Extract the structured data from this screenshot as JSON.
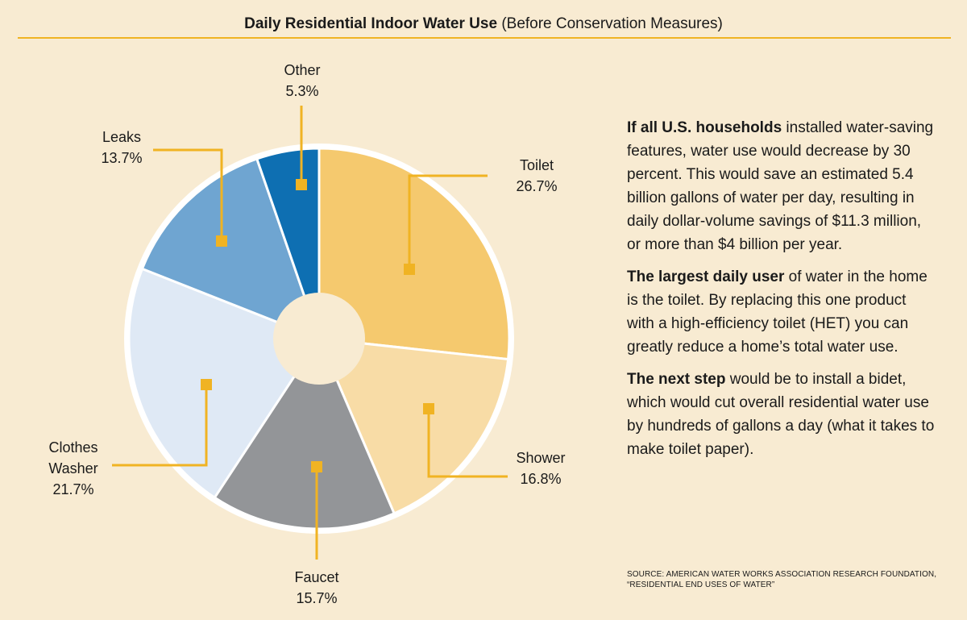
{
  "header": {
    "title_bold": "Daily Residential Indoor Water Use",
    "title_rest": "(Before Conservation Measures)"
  },
  "colors": {
    "accent": "#f0b323",
    "background": "#f8ebd2",
    "toilet": "#f5c96e",
    "shower": "#f8dca6",
    "faucet": "#939598",
    "clothes_washer": "#dfe9f5",
    "leaks": "#6fa5d1",
    "other": "#0e6fb2"
  },
  "chart_data": {
    "type": "pie",
    "donut": true,
    "title": "Daily Residential Indoor Water Use (Before Conservation Measures)",
    "unit": "%",
    "slices": [
      {
        "name": "Toilet",
        "value": 26.7,
        "label": "26.7%",
        "color": "#f5c96e"
      },
      {
        "name": "Shower",
        "value": 16.8,
        "label": "16.8%",
        "color": "#f8dca6"
      },
      {
        "name": "Faucet",
        "value": 15.7,
        "label": "15.7%",
        "color": "#939598"
      },
      {
        "name": "Clothes Washer",
        "value": 21.7,
        "label": "21.7%",
        "color": "#dfe9f5"
      },
      {
        "name": "Leaks",
        "value": 13.7,
        "label": "13.7%",
        "color": "#6fa5d1"
      },
      {
        "name": "Other",
        "value": 5.3,
        "label": "5.3%",
        "color": "#0e6fb2"
      }
    ]
  },
  "sidebar": {
    "p1_lead": "If all U.S. households",
    "p1_rest": " installed water-saving features, water use would decrease by 30 percent. This would save an estimated 5.4 billion gallons of water per day, resulting in daily dollar-volume savings of $11.3 million, or more than $4 billion per year.",
    "p2_lead": "The largest daily user",
    "p2_rest": " of water in the home is the toilet. By replacing this one product with a high-efficiency toilet (HET) you can greatly reduce a home’s total water use.",
    "p3_lead": "The next step",
    "p3_rest": " would be to install a bidet, which would cut overall residential water use by hundreds of gallons a day (what it takes to make toilet paper)."
  },
  "source": {
    "line1": "SOURCE: AMERICAN WATER WORKS ASSOCIATION RESEARCH FOUNDATION,",
    "line2": "“RESIDENTIAL END USES OF WATER”"
  }
}
